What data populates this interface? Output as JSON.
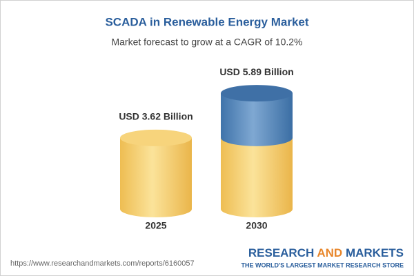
{
  "chart_data": {
    "type": "bar",
    "title": "SCADA in Renewable Energy Market",
    "subtitle": "Market forecast to grow at a CAGR of 10.2%",
    "categories": [
      "2025",
      "2030"
    ],
    "values": [
      3.62,
      5.89
    ],
    "value_labels": [
      "USD 3.62 Billion",
      "USD 5.89 Billion"
    ],
    "colors": [
      "#f3c860",
      "#4a7db3"
    ]
  },
  "footer": {
    "url": "https://www.researchandmarkets.com/reports/6160057",
    "logo": [
      "RESEARCH",
      "AND",
      "MARKETS"
    ],
    "tagline": "THE WORLD'S LARGEST MARKET RESEARCH STORE"
  }
}
